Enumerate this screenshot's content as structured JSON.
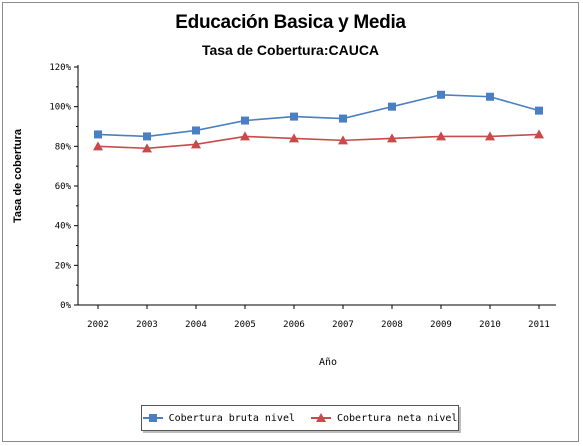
{
  "chart_data": {
    "type": "line",
    "title": "Educación Basica y Media",
    "subtitle": "Tasa de Cobertura:CAUCA",
    "xlabel": "Año",
    "ylabel": "Tasa de cobertura",
    "categories": [
      "2002",
      "2003",
      "2004",
      "2005",
      "2006",
      "2007",
      "2008",
      "2009",
      "2010",
      "2011"
    ],
    "yticks": [
      "0%",
      "20%",
      "40%",
      "60%",
      "80%",
      "100%",
      "120%"
    ],
    "ylim": [
      0,
      120
    ],
    "grid": false,
    "legend_position": "bottom",
    "series": [
      {
        "name": "Cobertura bruta nivel",
        "color": "#4a7fc1",
        "marker": "square",
        "values": [
          86,
          85,
          88,
          93,
          95,
          94,
          100,
          106,
          105,
          98
        ]
      },
      {
        "name": "Cobertura neta nivel",
        "color": "#c94a4a",
        "marker": "triangle",
        "values": [
          80,
          79,
          81,
          85,
          84,
          83,
          84,
          85,
          85,
          86
        ]
      }
    ]
  }
}
